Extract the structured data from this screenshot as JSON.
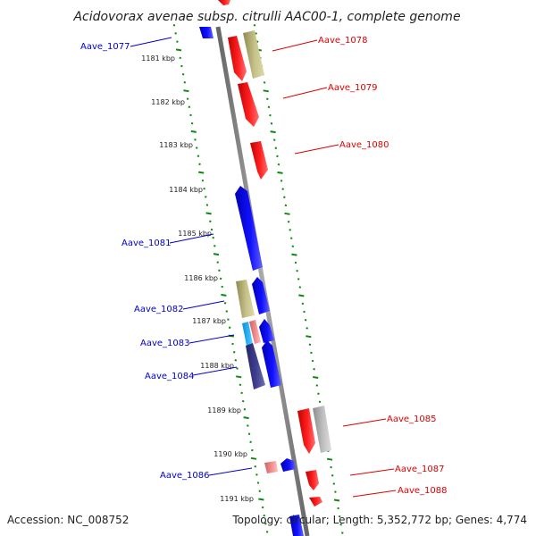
{
  "title": "Acidovorax avenae subsp. citrulli AAC00-1, complete genome",
  "footer": {
    "accession": "Accession: NC_008752",
    "summary": "Topology: circular; Length: 5,352,772 bp; Genes: 4,774"
  },
  "ticks": [
    {
      "label": "1181 kbp"
    },
    {
      "label": "1182 kbp"
    },
    {
      "label": "1183 kbp"
    },
    {
      "label": "1184 kbp"
    },
    {
      "label": "1185 kbp"
    },
    {
      "label": "1186 kbp"
    },
    {
      "label": "1187 kbp"
    },
    {
      "label": "1188 kbp"
    },
    {
      "label": "1189 kbp"
    },
    {
      "label": "1190 kbp"
    },
    {
      "label": "1191 kbp"
    }
  ],
  "labels": [
    {
      "text": "Aave_1077",
      "strand": "reverse"
    },
    {
      "text": "Aave_1078",
      "strand": "forward"
    },
    {
      "text": "Aave_1079",
      "strand": "forward"
    },
    {
      "text": "Aave_1080",
      "strand": "forward"
    },
    {
      "text": "Aave_1081",
      "strand": "reverse"
    },
    {
      "text": "Aave_1082",
      "strand": "reverse"
    },
    {
      "text": "Aave_1083",
      "strand": "reverse"
    },
    {
      "text": "Aave_1084",
      "strand": "reverse"
    },
    {
      "text": "Aave_1085",
      "strand": "forward"
    },
    {
      "text": "Aave_1086",
      "strand": "reverse"
    },
    {
      "text": "Aave_1087",
      "strand": "forward"
    },
    {
      "text": "Aave_1088",
      "strand": "forward"
    }
  ],
  "colors": {
    "forward_label": "#dd0000",
    "reverse_label": "#0000cc",
    "forward_gene": "#ee0000",
    "reverse_gene": "#0000ee",
    "tan_gene": "#b8b478",
    "gray_gene": "#b0b0b0",
    "pink_gene": "#e88080",
    "cyan_gene": "#22aaee",
    "navy_gene": "#3a3a88",
    "tick_green": "#118811",
    "backbone": "#888888"
  }
}
